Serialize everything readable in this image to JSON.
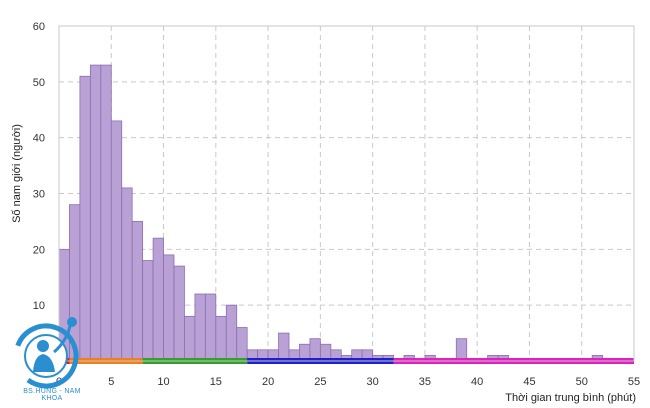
{
  "chart_data": {
    "type": "bar",
    "subtype": "histogram",
    "xlabel": "Thời gian trung bình (phút)",
    "ylabel": "Số nam giới (người)",
    "xlim": [
      0,
      55
    ],
    "ylim": [
      0,
      60
    ],
    "xticks": [
      0,
      5,
      10,
      15,
      20,
      25,
      30,
      35,
      40,
      45,
      50,
      55
    ],
    "yticks": [
      0,
      10,
      20,
      30,
      40,
      50,
      60
    ],
    "grid": true,
    "bin_width": 1,
    "bar_color": "#b9a1d6",
    "bar_edge_color": "#8a6fb0",
    "bins": [
      {
        "x0": 0,
        "count": 20
      },
      {
        "x0": 1,
        "count": 28
      },
      {
        "x0": 2,
        "count": 51
      },
      {
        "x0": 3,
        "count": 53
      },
      {
        "x0": 4,
        "count": 53
      },
      {
        "x0": 5,
        "count": 43
      },
      {
        "x0": 6,
        "count": 31
      },
      {
        "x0": 7,
        "count": 25
      },
      {
        "x0": 8,
        "count": 18
      },
      {
        "x0": 9,
        "count": 22
      },
      {
        "x0": 10,
        "count": 19
      },
      {
        "x0": 11,
        "count": 17
      },
      {
        "x0": 12,
        "count": 8
      },
      {
        "x0": 13,
        "count": 12
      },
      {
        "x0": 14,
        "count": 12
      },
      {
        "x0": 15,
        "count": 8
      },
      {
        "x0": 16,
        "count": 10
      },
      {
        "x0": 17,
        "count": 6
      },
      {
        "x0": 18,
        "count": 2
      },
      {
        "x0": 19,
        "count": 2
      },
      {
        "x0": 20,
        "count": 2
      },
      {
        "x0": 21,
        "count": 5
      },
      {
        "x0": 22,
        "count": 2
      },
      {
        "x0": 23,
        "count": 3
      },
      {
        "x0": 24,
        "count": 4
      },
      {
        "x0": 25,
        "count": 3
      },
      {
        "x0": 26,
        "count": 2
      },
      {
        "x0": 27,
        "count": 1
      },
      {
        "x0": 28,
        "count": 2
      },
      {
        "x0": 29,
        "count": 2
      },
      {
        "x0": 30,
        "count": 1
      },
      {
        "x0": 31,
        "count": 1
      },
      {
        "x0": 33,
        "count": 1
      },
      {
        "x0": 35,
        "count": 1
      },
      {
        "x0": 38,
        "count": 4
      },
      {
        "x0": 41,
        "count": 1
      },
      {
        "x0": 42,
        "count": 1
      },
      {
        "x0": 51,
        "count": 1
      }
    ],
    "color_bands": [
      {
        "x0": 0,
        "x1": 1,
        "color": "#e31a1c"
      },
      {
        "x0": 1,
        "x1": 8,
        "color": "#f07f1b"
      },
      {
        "x0": 8,
        "x1": 18,
        "color": "#33a02c"
      },
      {
        "x0": 18,
        "x1": 32,
        "color": "#1f1fcc"
      },
      {
        "x0": 32,
        "x1": 55,
        "color": "#e020c0"
      }
    ]
  },
  "logo": {
    "icon": "doctor-logo-icon",
    "text": "BS.HUNG - NAM KHOA",
    "color": "#2a8fd0"
  }
}
